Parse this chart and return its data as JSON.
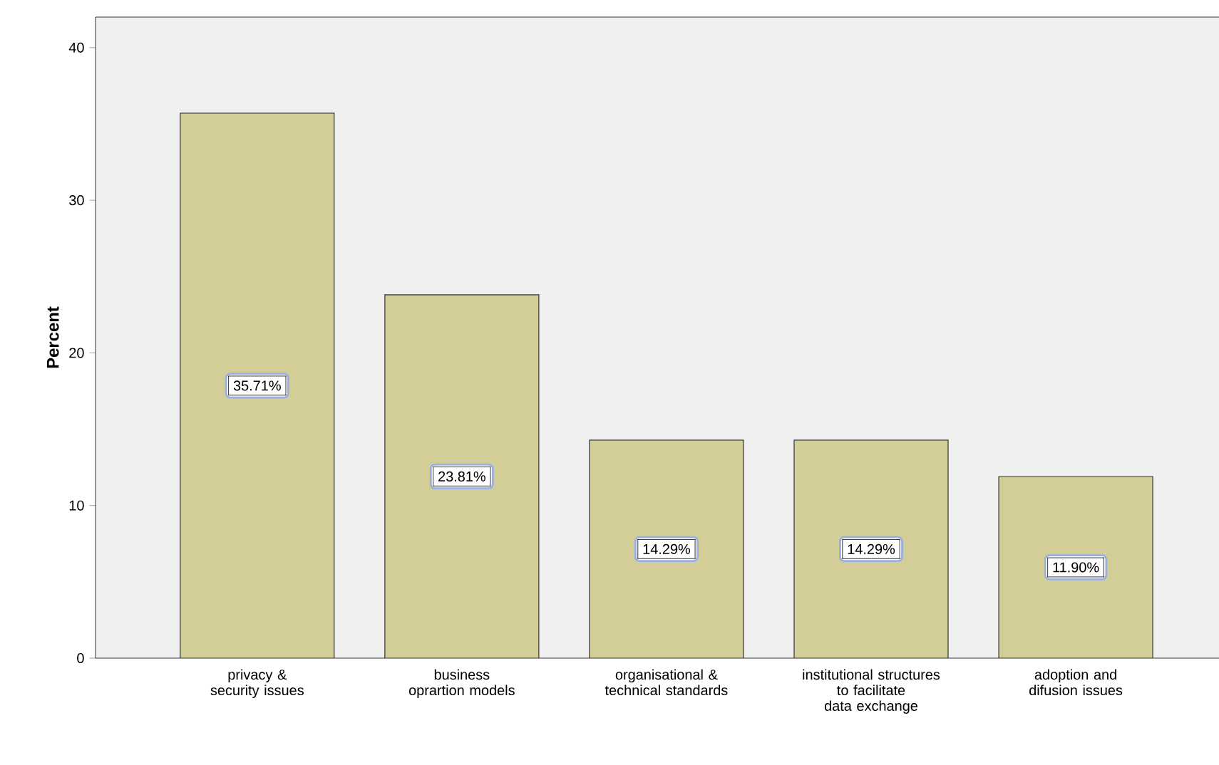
{
  "chart_data": {
    "type": "bar",
    "ylabel": "Percent",
    "categories": [
      "privacy & security issues",
      "business oprartion models",
      "organisational & technical standards",
      "institutional structures to facilitate data exchange",
      "adoption and difusion issues"
    ],
    "values": [
      35.71,
      23.81,
      14.29,
      14.29,
      11.9
    ],
    "value_labels": [
      "35.71%",
      "23.81%",
      "14.29%",
      "14.29%",
      "11.90%"
    ],
    "color": "#d3ce97",
    "ylim": [
      0,
      42
    ],
    "yticks": [
      0,
      10,
      20,
      30,
      40
    ]
  }
}
